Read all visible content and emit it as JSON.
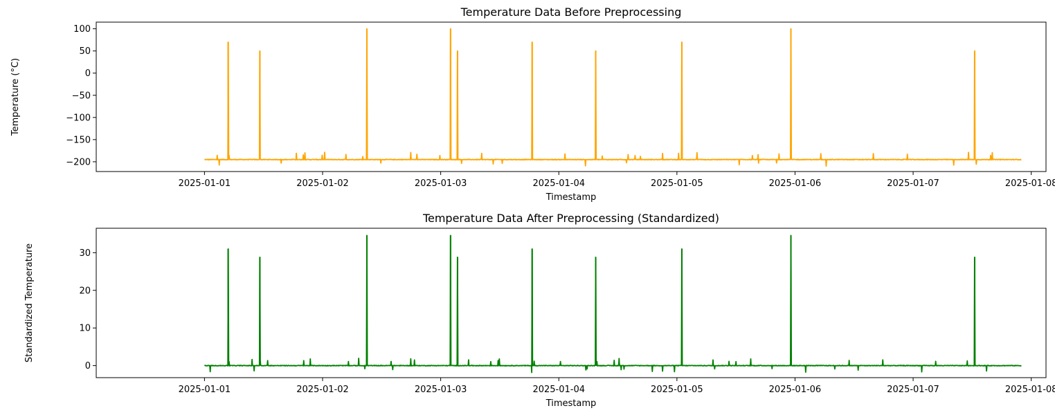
{
  "chart_data": [
    {
      "type": "line",
      "title": "Temperature Data Before Preprocessing",
      "xlabel": "Timestamp",
      "ylabel": "Temperature (°C)",
      "color": "#ffa500",
      "xlim": [
        "2024-12-31T02:00",
        "2025-01-08T03:00"
      ],
      "ylim": [
        -222,
        115
      ],
      "yticks": [
        100,
        50,
        0,
        -50,
        -100,
        -150,
        -200
      ],
      "yticklabels": [
        "100",
        "50",
        "0",
        "−50",
        "−100",
        "−150",
        "−200"
      ],
      "xticks": [
        "2025-01-01",
        "2025-01-02",
        "2025-01-03",
        "2025-01-04",
        "2025-01-05",
        "2025-01-06",
        "2025-01-07",
        "2025-01-08"
      ],
      "grid": false,
      "series": [
        {
          "baseline": -195,
          "x_range": [
            "2025-01-01T00:00",
            "2025-01-07T22:00"
          ],
          "spikes": [
            {
              "x": "2025-01-01T04:48",
              "y": 70
            },
            {
              "x": "2025-01-01T11:15",
              "y": 50
            },
            {
              "x": "2025-01-02T09:00",
              "y": 100
            },
            {
              "x": "2025-01-03T02:00",
              "y": 100
            },
            {
              "x": "2025-01-03T03:25",
              "y": 50
            },
            {
              "x": "2025-01-03T18:35",
              "y": 70
            },
            {
              "x": "2025-01-04T07:30",
              "y": 50
            },
            {
              "x": "2025-01-05T01:00",
              "y": 70
            },
            {
              "x": "2025-01-05T23:10",
              "y": 100
            },
            {
              "x": "2025-01-07T12:30",
              "y": 50
            }
          ]
        }
      ]
    },
    {
      "type": "line",
      "title": "Temperature Data After Preprocessing (Standardized)",
      "xlabel": "Timestamp",
      "ylabel": "Standardized Temperature",
      "color": "#008000",
      "xlim": [
        "2024-12-31T02:00",
        "2025-01-08T03:00"
      ],
      "ylim": [
        -3.2,
        36.5
      ],
      "yticks": [
        30,
        20,
        10,
        0
      ],
      "yticklabels": [
        "30",
        "20",
        "10",
        "0"
      ],
      "xticks": [
        "2025-01-01",
        "2025-01-02",
        "2025-01-03",
        "2025-01-04",
        "2025-01-05",
        "2025-01-06",
        "2025-01-07",
        "2025-01-08"
      ],
      "grid": false,
      "series": [
        {
          "baseline": 0,
          "x_range": [
            "2025-01-01T00:00",
            "2025-01-07T22:00"
          ],
          "spikes": [
            {
              "x": "2025-01-01T04:48",
              "y": 31
            },
            {
              "x": "2025-01-01T11:15",
              "y": 28.8
            },
            {
              "x": "2025-01-02T09:00",
              "y": 34.6
            },
            {
              "x": "2025-01-03T02:00",
              "y": 34.6
            },
            {
              "x": "2025-01-03T03:25",
              "y": 28.8
            },
            {
              "x": "2025-01-03T18:35",
              "y": 31
            },
            {
              "x": "2025-01-04T07:30",
              "y": 28.8
            },
            {
              "x": "2025-01-05T01:00",
              "y": 31
            },
            {
              "x": "2025-01-05T23:10",
              "y": 34.6
            },
            {
              "x": "2025-01-07T12:30",
              "y": 28.8
            }
          ]
        }
      ]
    }
  ]
}
